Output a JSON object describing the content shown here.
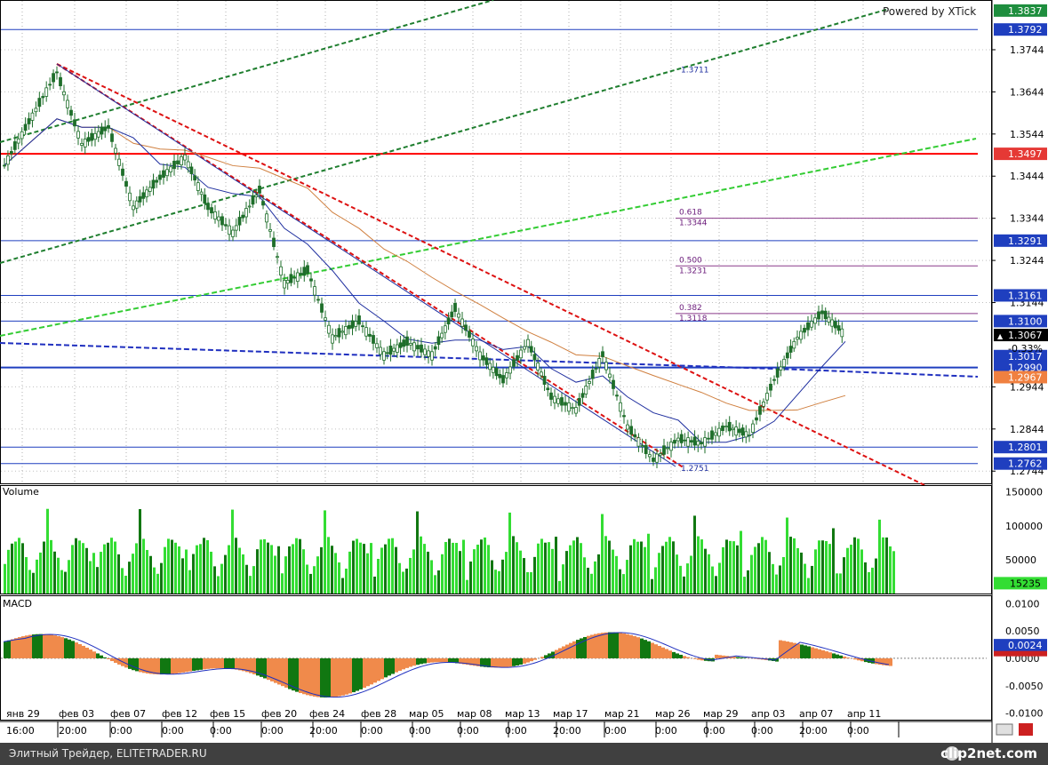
{
  "watermark": "Powered by XTick",
  "price_pane": {
    "y_ticks": [
      "1.3744",
      "1.3644",
      "1.3544",
      "1.3444",
      "1.3344",
      "1.3244",
      "1.3144",
      "1.2944",
      "1.2844",
      "1.2744"
    ],
    "y_tick_values": [
      1.3744,
      1.3644,
      1.3544,
      1.3444,
      1.3344,
      1.3244,
      1.3144,
      1.2944,
      1.2844,
      1.2744
    ],
    "ylim": [
      1.2715,
      1.3862
    ],
    "last_price": "1.3067",
    "change_pct": "-0.33%",
    "levels": [
      {
        "label": "1.3837",
        "value": 1.3837,
        "bg": "#1e8e3e",
        "line": false
      },
      {
        "label": "1.3792",
        "value": 1.3792,
        "bg": "#1f3fbf",
        "line": true,
        "color": "#1f3fbf"
      },
      {
        "label": "1.3497",
        "value": 1.3497,
        "bg": "#e53935",
        "line": true,
        "color": "#ff0000",
        "width": 2
      },
      {
        "label": "1.3291",
        "value": 1.3291,
        "bg": "#1f3fbf",
        "line": true,
        "color": "#1f3fbf"
      },
      {
        "label": "1.3161",
        "value": 1.3161,
        "bg": "#1f3fbf",
        "line": true,
        "color": "#1f3fbf"
      },
      {
        "label": "1.3100",
        "value": 1.31,
        "bg": "#1f3fbf",
        "line": true,
        "color": "#1f3fbf"
      },
      {
        "label": "1.3017",
        "value": 1.3017,
        "bg": "#1f3fbf",
        "line": false
      },
      {
        "label": "1.2990",
        "value": 1.299,
        "bg": "#1f3fbf",
        "line": true,
        "color": "#1f3fbf",
        "width": 2
      },
      {
        "label": "1.2967",
        "value": 1.2967,
        "bg": "#f08040",
        "line": false
      },
      {
        "label": "1.2801",
        "value": 1.2801,
        "bg": "#1f3fbf",
        "line": true,
        "color": "#1f3fbf"
      },
      {
        "label": "1.2762",
        "value": 1.2762,
        "bg": "#1f3fbf",
        "line": true,
        "color": "#1f3fbf"
      }
    ],
    "fib_levels": [
      {
        "ratio": "0.618",
        "price": "1.3344",
        "value": 1.3344
      },
      {
        "ratio": "0.500",
        "price": "1.3231",
        "value": 1.3231
      },
      {
        "ratio": "0.382",
        "price": "1.3118",
        "value": 1.3118
      }
    ],
    "annotations": [
      {
        "text": "1.3711",
        "value": 1.3711
      },
      {
        "text": "1.2751",
        "value": 1.2751
      }
    ]
  },
  "volume_pane": {
    "title": "Volume",
    "y_ticks": [
      "150000",
      "100000",
      "50000"
    ],
    "y_tick_values": [
      150000,
      100000,
      50000
    ],
    "ylim": [
      0,
      160000
    ],
    "last_value": "15235"
  },
  "macd_pane": {
    "title": "MACD",
    "y_ticks": [
      "0.0100",
      "0.0050",
      "0.0000",
      "-0.0050",
      "-0.0100"
    ],
    "y_tick_values": [
      0.01,
      0.005,
      0.0,
      -0.005,
      -0.01
    ],
    "ylim": [
      -0.0112,
      0.0115
    ],
    "last_value": "0.0024",
    "last_signal": "0.0015"
  },
  "x_axis": {
    "dates": [
      "янв 29",
      "фев 03",
      "фев 07",
      "фев 12",
      "фев 15",
      "фев 20",
      "фев 24",
      "фев 28",
      "мар 05",
      "мар 08",
      "мар 13",
      "мар 17",
      "мар 21",
      "мар 26",
      "мар 29",
      "апр 03",
      "апр 07",
      "апр 11"
    ],
    "times": [
      "16:00",
      "20:00",
      "0:00",
      "0:00",
      "0:00",
      "0:00",
      "20:00",
      "0:00",
      "0:00",
      "0:00",
      "0:00",
      "20:00",
      "0:00",
      "0:00",
      "0:00",
      "0:00",
      "20:00",
      "0:00"
    ]
  },
  "footer": {
    "caption": "Элитный Трейдер, ELITETRADER.RU",
    "brand": "clip2net.com"
  },
  "colors": {
    "bull_candle": "#1e6e2a",
    "bear_candle": "#1e6e2a",
    "ma_fast": "#1f2f9f",
    "ma_slow": "#d08040",
    "channel_dark_green": "#1e7e2e",
    "channel_light_green": "#33cc33",
    "downtrend_red": "#dd1111",
    "vol_light": "#33dd33",
    "vol_dark": "#117711",
    "macd_pos": "#117711",
    "macd_neg": "#f08a4b",
    "axis_bg": "#ffffff"
  },
  "chart_data": [
    {
      "type": "candlestick",
      "title": "",
      "ylim": [
        1.2715,
        1.3862
      ],
      "close_path": [
        {
          "x": "янв 29",
          "y": 1.347
        },
        {
          "x": "фев 03",
          "y": 1.369
        },
        {
          "x": "фев 03",
          "y": 1.352
        },
        {
          "x": "фев 07",
          "y": 1.356
        },
        {
          "x": "фев 07",
          "y": 1.337
        },
        {
          "x": "фев 12",
          "y": 1.344
        },
        {
          "x": "фев 12",
          "y": 1.349
        },
        {
          "x": "фев 15",
          "y": 1.337
        },
        {
          "x": "фев 15",
          "y": 1.331
        },
        {
          "x": "фев 20",
          "y": 1.341
        },
        {
          "x": "фев 20",
          "y": 1.319
        },
        {
          "x": "фев 24",
          "y": 1.322
        },
        {
          "x": "фев 24",
          "y": 1.306
        },
        {
          "x": "фев 28",
          "y": 1.31
        },
        {
          "x": "фев 28",
          "y": 1.302
        },
        {
          "x": "мар 05",
          "y": 1.305
        },
        {
          "x": "мар 05",
          "y": 1.302
        },
        {
          "x": "мар 08",
          "y": 1.313
        },
        {
          "x": "мар 08",
          "y": 1.302
        },
        {
          "x": "мар 13",
          "y": 1.296
        },
        {
          "x": "мар 13",
          "y": 1.305
        },
        {
          "x": "мар 17",
          "y": 1.292
        },
        {
          "x": "мар 17",
          "y": 1.289
        },
        {
          "x": "мар 21",
          "y": 1.302
        },
        {
          "x": "мар 21",
          "y": 1.285
        },
        {
          "x": "мар 26",
          "y": 1.277
        },
        {
          "x": "мар 26",
          "y": 1.282
        },
        {
          "x": "мар 29",
          "y": 1.281
        },
        {
          "x": "мар 29",
          "y": 1.285
        },
        {
          "x": "апр 03",
          "y": 1.283
        },
        {
          "x": "апр 03",
          "y": 1.296
        },
        {
          "x": "апр 07",
          "y": 1.306
        },
        {
          "x": "апр 07",
          "y": 1.312
        },
        {
          "x": "апр 11",
          "y": 1.3067
        }
      ]
    },
    {
      "type": "bar",
      "title": "Volume",
      "ylim": [
        0,
        160000
      ],
      "last": 15235
    },
    {
      "type": "bar",
      "title": "MACD",
      "ylim": [
        -0.0112,
        0.0115
      ],
      "last": 0.0024,
      "signal_last": 0.0015
    }
  ]
}
